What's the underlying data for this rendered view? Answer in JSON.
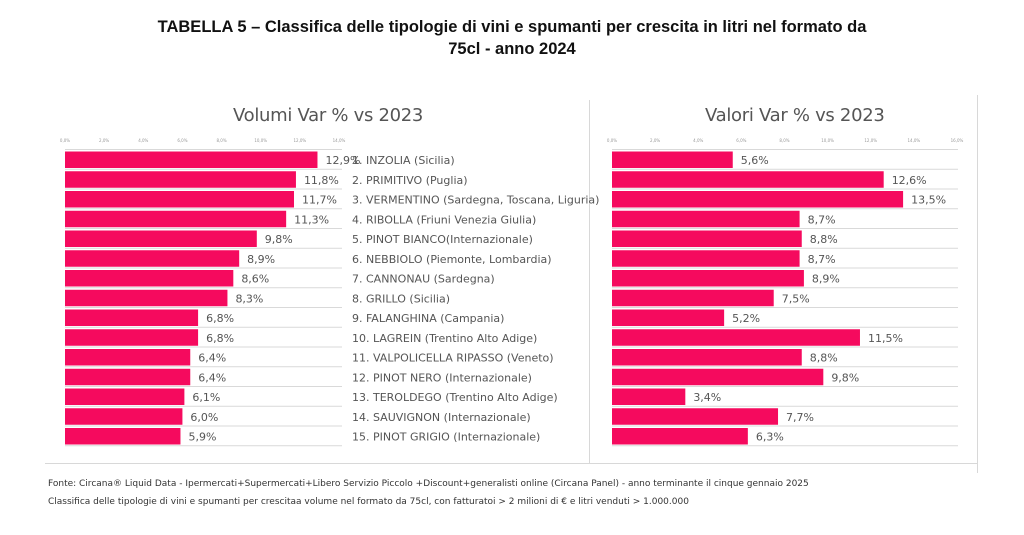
{
  "title_line1": "TABELLA 5 – Classifica delle tipologie di vini e spumanti per crescita in litri nel formato da",
  "title_line2": "75cl - anno 2024",
  "colors": {
    "bar": "#f50a5e",
    "grid": "#d9d9d9",
    "text": "#555555"
  },
  "footer": {
    "line1": "Fonte: Circana® Liquid Data - Ipermercati+Supermercati+Libero Servizio Piccolo +Discount+generalisti online (Circana Panel) - anno terminante il cinque gennaio 2025",
    "line2": "Classifica delle tipologie di vini e spumanti per crescitaa volume nel formato da 75cl, con fatturatoi > 2 milioni di € e litri venduti > 1.000.000"
  },
  "chart_data": [
    {
      "type": "bar",
      "orientation": "horizontal",
      "title": "Volumi Var % vs 2023",
      "xlim": [
        0,
        14
      ],
      "ticks": [
        "0,0%",
        "2,0%",
        "4,0%",
        "6,0%",
        "8,0%",
        "10,0%",
        "12,0%",
        "14,0%"
      ],
      "categories": [
        "1. INZOLIA (Sicilia)",
        "2. PRIMITIVO (Puglia)",
        "3. VERMENTINO (Sardegna, Toscana, Liguria)",
        "4. RIBOLLA (Friuni Venezia Giulia)",
        "5. PINOT BIANCO(Internazionale)",
        "6. NEBBIOLO (Piemonte, Lombardia)",
        "7. CANNONAU (Sardegna)",
        "8. GRILLO (Sicilia)",
        "9. FALANGHINA (Campania)",
        "10. LAGREIN (Trentino Alto Adige)",
        "11. VALPOLICELLA RIPASSO (Veneto)",
        "12. PINOT NERO (Internazionale)",
        "13. TEROLDEGO (Trentino Alto Adige)",
        "14. SAUVIGNON (Internazionale)",
        "15. PINOT GRIGIO (Internazionale)"
      ],
      "values": [
        12.9,
        11.8,
        11.7,
        11.3,
        9.8,
        8.9,
        8.6,
        8.3,
        6.8,
        6.8,
        6.4,
        6.4,
        6.1,
        6.0,
        5.9
      ],
      "labels": [
        "12,9%",
        "11,8%",
        "11,7%",
        "11,3%",
        "9,8%",
        "8,9%",
        "8,6%",
        "8,3%",
        "6,8%",
        "6,8%",
        "6,4%",
        "6,4%",
        "6,1%",
        "6,0%",
        "5,9%"
      ],
      "grid": true,
      "legend": "none"
    },
    {
      "type": "bar",
      "orientation": "horizontal",
      "title": "Valori Var % vs 2023",
      "xlim": [
        0,
        16
      ],
      "ticks": [
        "0,0%",
        "2,0%",
        "4,0%",
        "6,0%",
        "8,0%",
        "10,0%",
        "12,0%",
        "14,0%",
        "16,0%"
      ],
      "values": [
        5.6,
        12.6,
        13.5,
        8.7,
        8.8,
        8.7,
        8.9,
        7.5,
        5.2,
        11.5,
        8.8,
        9.8,
        3.4,
        7.7,
        6.3
      ],
      "labels": [
        "5,6%",
        "12,6%",
        "13,5%",
        "8,7%",
        "8,8%",
        "8,7%",
        "8,9%",
        "7,5%",
        "5,2%",
        "11,5%",
        "8,8%",
        "9,8%",
        "3,4%",
        "7,7%",
        "6,3%"
      ],
      "grid": true,
      "legend": "none"
    }
  ]
}
